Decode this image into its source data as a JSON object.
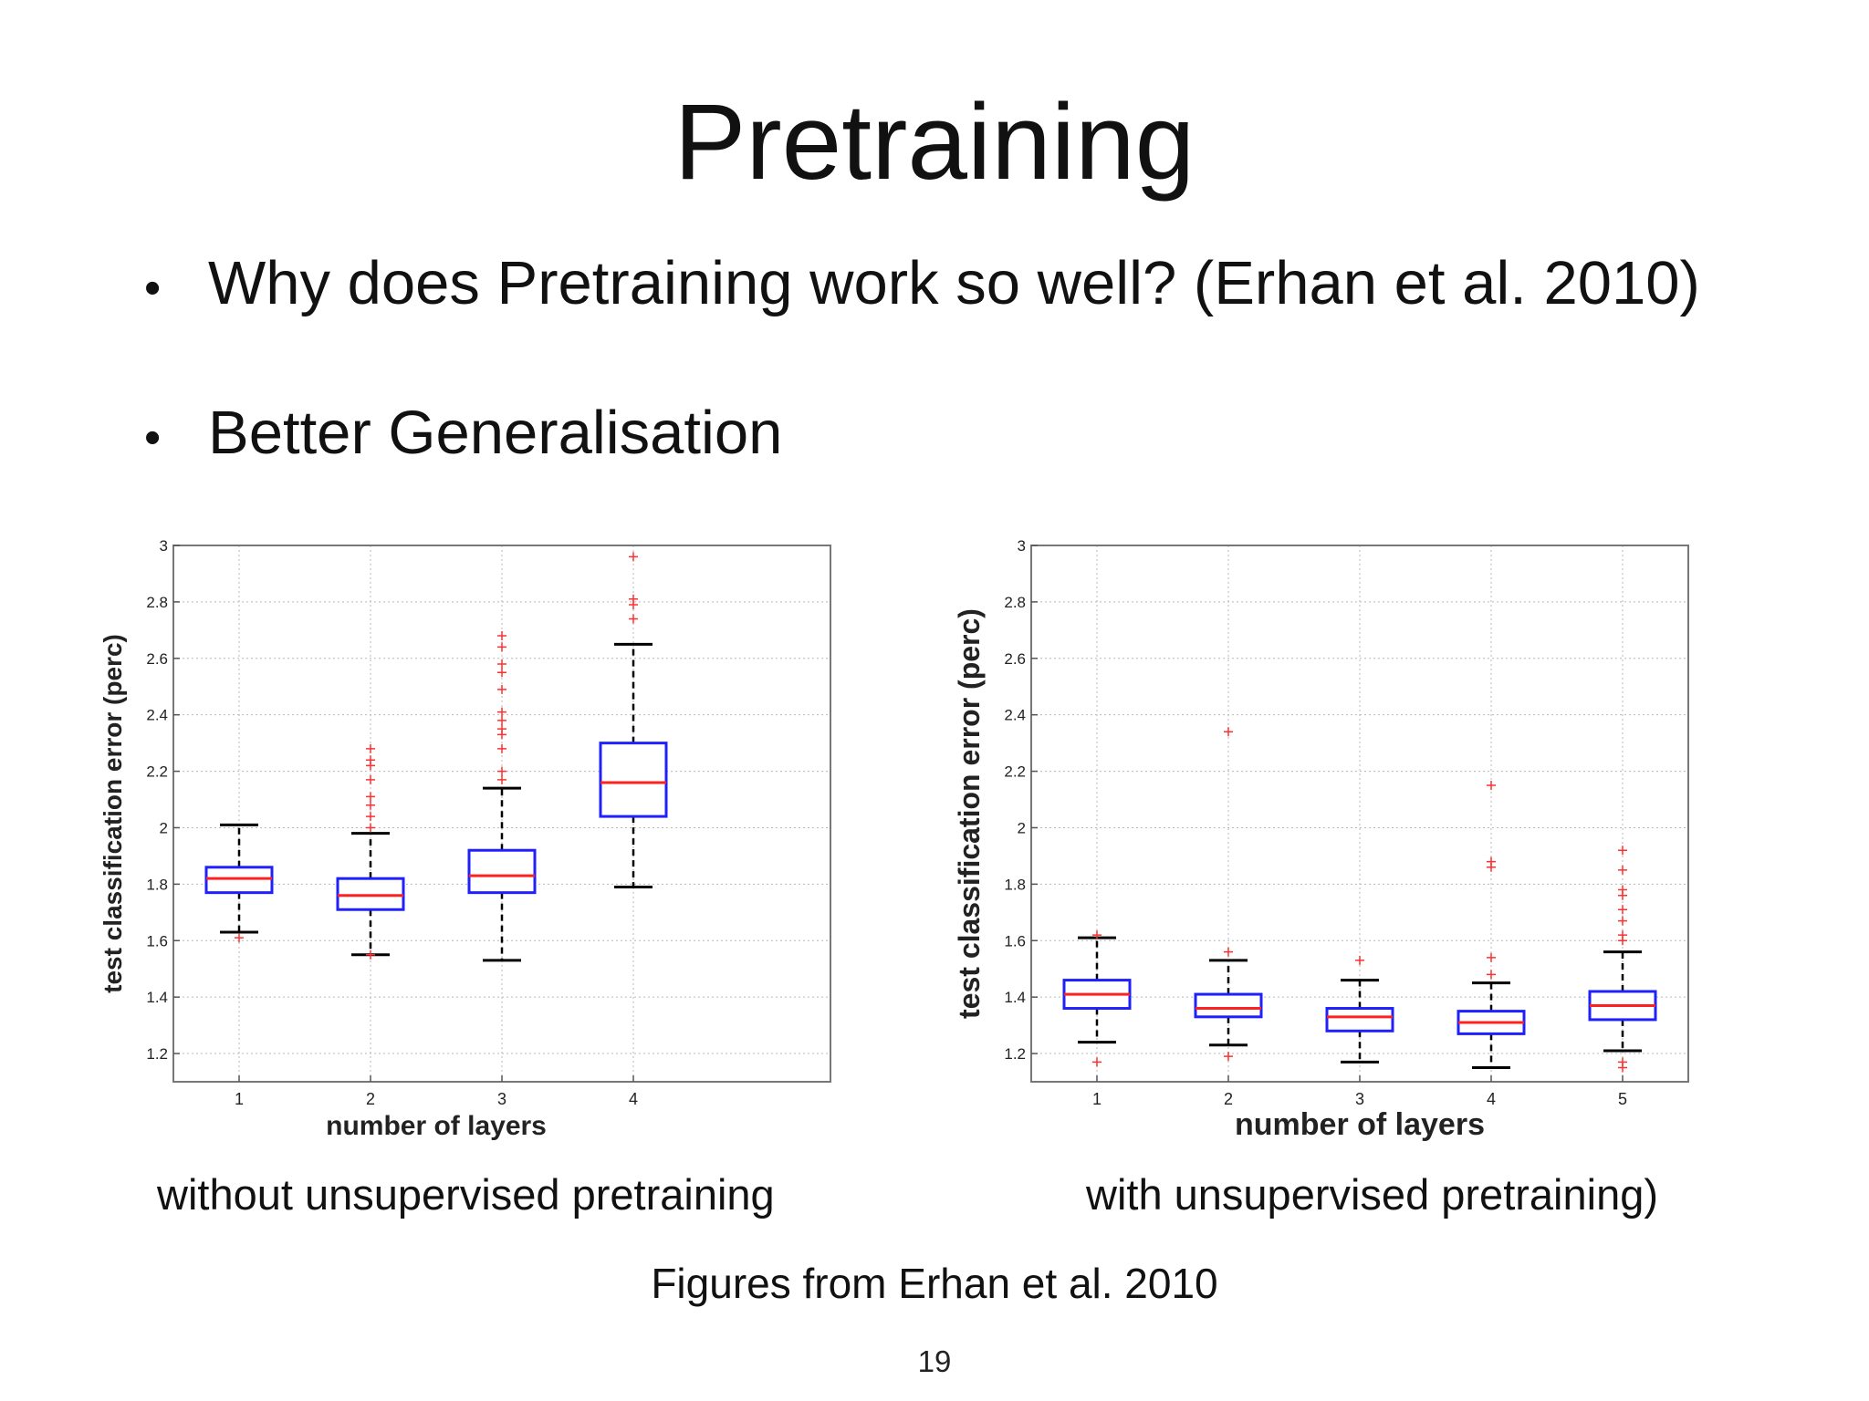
{
  "slide": {
    "title": "Pretraining",
    "bullets": [
      "Why does Pretraining work so well? (Erhan et al. 2010)",
      "Better Generalisation"
    ],
    "bullet_symbol": "•",
    "captions": [
      "without unsupervised pretraining",
      "with unsupervised pretraining)"
    ],
    "source": "Figures from Erhan et al. 2010",
    "page_number": "19"
  },
  "chart_data": [
    {
      "type": "box",
      "xlabel": "number of layers",
      "ylabel": "test classification error (perc)",
      "categories": [
        "1",
        "2",
        "3",
        "4"
      ],
      "xlim": [
        0.5,
        5.5
      ],
      "ylim": [
        1.1,
        3.0
      ],
      "yticks": [
        "1.2",
        "1.4",
        "1.6",
        "1.8",
        "2",
        "2.2",
        "2.4",
        "2.6",
        "2.8",
        "3"
      ],
      "grid": true,
      "boxes": [
        {
          "category": "1",
          "whisker_low": 1.63,
          "q1": 1.77,
          "median": 1.82,
          "q3": 1.86,
          "whisker_high": 2.01,
          "outliers": [
            1.61
          ]
        },
        {
          "category": "2",
          "whisker_low": 1.55,
          "q1": 1.71,
          "median": 1.76,
          "q3": 1.82,
          "whisker_high": 1.98,
          "outliers": [
            1.55,
            2.0,
            2.04,
            2.08,
            2.11,
            2.17,
            2.22,
            2.24,
            2.28
          ]
        },
        {
          "category": "3",
          "whisker_low": 1.53,
          "q1": 1.77,
          "median": 1.83,
          "q3": 1.92,
          "whisker_high": 2.14,
          "outliers": [
            2.17,
            2.2,
            2.28,
            2.33,
            2.35,
            2.38,
            2.41,
            2.49,
            2.55,
            2.58,
            2.64,
            2.68
          ]
        },
        {
          "category": "4",
          "whisker_low": 1.79,
          "q1": 2.04,
          "median": 2.16,
          "q3": 2.3,
          "whisker_high": 2.65,
          "outliers": [
            2.74,
            2.79,
            2.81,
            2.96
          ]
        }
      ],
      "colors": {
        "box": "#2020ff",
        "median": "#ff2020",
        "whisker": "#000000",
        "outlier": "#ff3030"
      }
    },
    {
      "type": "box",
      "xlabel": "number of layers",
      "ylabel": "test classification error (perc)",
      "categories": [
        "1",
        "2",
        "3",
        "4",
        "5"
      ],
      "xlim": [
        0.5,
        5.5
      ],
      "ylim": [
        1.1,
        3.0
      ],
      "yticks": [
        "1.2",
        "1.4",
        "1.6",
        "1.8",
        "2",
        "2.2",
        "2.4",
        "2.6",
        "2.8",
        "3"
      ],
      "grid": true,
      "boxes": [
        {
          "category": "1",
          "whisker_low": 1.24,
          "q1": 1.36,
          "median": 1.41,
          "q3": 1.46,
          "whisker_high": 1.61,
          "outliers": [
            1.17,
            1.62
          ]
        },
        {
          "category": "2",
          "whisker_low": 1.23,
          "q1": 1.33,
          "median": 1.36,
          "q3": 1.41,
          "whisker_high": 1.53,
          "outliers": [
            1.19,
            1.56,
            2.34
          ]
        },
        {
          "category": "3",
          "whisker_low": 1.17,
          "q1": 1.28,
          "median": 1.33,
          "q3": 1.36,
          "whisker_high": 1.46,
          "outliers": [
            1.53
          ]
        },
        {
          "category": "4",
          "whisker_low": 1.15,
          "q1": 1.27,
          "median": 1.31,
          "q3": 1.35,
          "whisker_high": 1.45,
          "outliers": [
            1.48,
            1.54,
            1.86,
            1.88,
            2.15
          ]
        },
        {
          "category": "5",
          "whisker_low": 1.21,
          "q1": 1.32,
          "median": 1.37,
          "q3": 1.42,
          "whisker_high": 1.56,
          "outliers": [
            1.15,
            1.17,
            1.6,
            1.62,
            1.67,
            1.71,
            1.76,
            1.78,
            1.85,
            1.92
          ]
        }
      ],
      "colors": {
        "box": "#2020ff",
        "median": "#ff2020",
        "whisker": "#000000",
        "outlier": "#ff3030"
      }
    }
  ]
}
